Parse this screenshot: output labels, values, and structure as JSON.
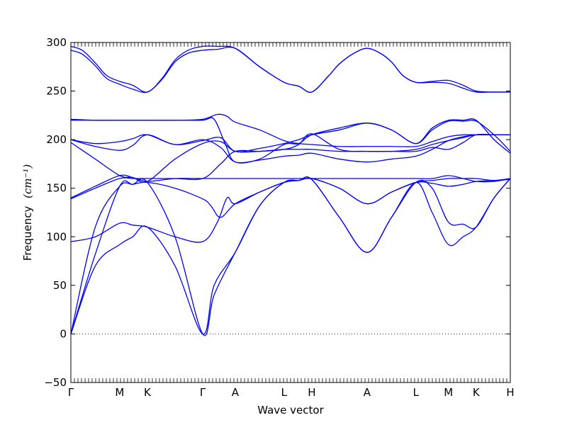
{
  "chart_data": {
    "type": "line",
    "xlabel": "Wave vector",
    "ylabel": "Frequency",
    "ylabel_unit": "(cm⁻¹)",
    "ylim": [
      -50,
      300
    ],
    "yticks": [
      -50,
      0,
      50,
      100,
      150,
      200,
      250,
      300
    ],
    "grid": false,
    "zero_line": "dotted",
    "line_color": "#0000ff",
    "xlim": [
      0,
      13.5
    ],
    "high_symmetry_points": [
      {
        "label": "Γ",
        "x": 0
      },
      {
        "label": "M",
        "x": 1.5
      },
      {
        "label": "K",
        "x": 2.35
      },
      {
        "label": "Γ",
        "x": 4.05
      },
      {
        "label": "A",
        "x": 5.05
      },
      {
        "label": "L",
        "x": 6.55
      },
      {
        "label": "H",
        "x": 7.4
      },
      {
        "label": "A",
        "x": 9.1
      },
      {
        "label": "L",
        "x": 10.6
      },
      {
        "label": "M",
        "x": 11.6
      },
      {
        "label": "K",
        "x": 12.45
      },
      {
        "label": "H",
        "x": 13.5
      }
    ],
    "series": [
      {
        "x": [
          0,
          0.75,
          1.5,
          1.9,
          2.35,
          3.2,
          4.05,
          4.4,
          5.05,
          5.8,
          6.55,
          7.0,
          7.4,
          8.25,
          9.1,
          9.85,
          10.6,
          11.1,
          11.6,
          12.05,
          12.45,
          13.0,
          13.5
        ],
        "y": [
          0,
          82,
          152,
          154,
          156,
          100,
          0,
          40,
          84,
          132,
          156,
          158,
          159,
          120,
          84,
          120,
          156,
          125,
          92,
          100,
          110,
          140,
          160
        ]
      },
      {
        "x": [
          0,
          0.75,
          1.5,
          1.9,
          2.35,
          3.2,
          4.05,
          4.4,
          5.05,
          5.8,
          6.55,
          7.0,
          7.4,
          8.25,
          9.1,
          9.85,
          10.6,
          11.1,
          11.6,
          12.05,
          12.45,
          13.0,
          13.5
        ],
        "y": [
          0,
          70,
          92,
          100,
          110,
          70,
          0,
          50,
          84,
          132,
          156,
          158,
          159,
          120,
          84,
          120,
          156,
          150,
          115,
          113,
          110,
          140,
          160
        ]
      },
      {
        "x": [
          0,
          0.75,
          1.5,
          1.9,
          2.35,
          3.2,
          4.05,
          4.3,
          4.6,
          5.05,
          5.8,
          6.55,
          7.0,
          7.4,
          8.25,
          9.1,
          9.85,
          10.6,
          11.1,
          11.6,
          12.05,
          12.45,
          13.0,
          13.5
        ],
        "y": [
          0,
          110,
          152,
          154,
          156,
          150,
          139,
          132,
          120,
          134,
          146,
          156,
          158,
          160,
          150,
          134,
          146,
          156,
          158,
          160,
          160,
          160,
          158,
          160
        ]
      },
      {
        "x": [
          0,
          0.75,
          1.5,
          1.9,
          2.35,
          3.2,
          4.05,
          4.5,
          4.8,
          5.05,
          5.8,
          6.55,
          7.0,
          7.4,
          8.25,
          9.1,
          9.85,
          10.6,
          11.1,
          11.6,
          12.05,
          12.45,
          13.0,
          13.5
        ],
        "y": [
          95,
          100,
          114,
          112,
          110,
          100,
          95,
          115,
          140,
          134,
          146,
          156,
          158,
          160,
          150,
          134,
          146,
          156,
          155,
          152,
          154,
          157,
          158,
          159
        ]
      },
      {
        "x": [
          0,
          0.75,
          1.5,
          1.9,
          2.35,
          3.2,
          4.05,
          4.6,
          5.05,
          5.8,
          6.55,
          7.0,
          7.4,
          8.25,
          9.1,
          9.85,
          10.6,
          11.1,
          11.6,
          12.05,
          12.45,
          13.0,
          13.5
        ],
        "y": [
          139,
          150,
          160,
          160,
          160,
          160,
          160,
          175,
          188,
          188,
          190,
          190,
          190,
          188,
          188,
          188,
          190,
          195,
          199,
          202,
          205,
          205,
          205
        ]
      },
      {
        "x": [
          0,
          0.75,
          1.5,
          1.9,
          2.35,
          3.2,
          4.05,
          4.6,
          5.05,
          5.8,
          6.55,
          7.0,
          7.4,
          8.25,
          9.1,
          9.85,
          10.6,
          11.1,
          11.6,
          12.05,
          12.45,
          13.0,
          13.5
        ],
        "y": [
          140,
          152,
          163,
          161,
          157,
          180,
          196,
          198,
          188,
          188,
          190,
          195,
          206,
          190,
          188,
          188,
          188,
          192,
          190,
          197,
          205,
          205,
          205
        ]
      },
      {
        "x": [
          0,
          0.75,
          1.5,
          1.9,
          2.35,
          3.2,
          4.05,
          4.5,
          5.05,
          5.8,
          6.55,
          7.0,
          7.4,
          8.25,
          9.1,
          9.85,
          10.6,
          11.1,
          11.6,
          12.05,
          12.45,
          13.0,
          13.5
        ],
        "y": [
          197,
          180,
          163,
          161,
          157,
          160,
          160,
          160,
          160,
          160,
          160,
          160,
          160,
          160,
          160,
          160,
          160,
          160,
          163,
          160,
          157,
          157,
          160
        ]
      },
      {
        "x": [
          0,
          0.75,
          1.5,
          1.9,
          2.35,
          3.2,
          4.05,
          4.6,
          5.05,
          5.8,
          6.55,
          7.0,
          7.4,
          8.25,
          9.1,
          9.85,
          10.6,
          11.1,
          11.6,
          12.05,
          12.45,
          13.0,
          13.5
        ],
        "y": [
          200,
          193,
          189,
          194,
          205,
          195,
          200,
          192,
          177,
          179,
          183,
          184,
          186,
          180,
          177,
          180,
          183,
          190,
          199,
          203,
          205,
          205,
          205
        ]
      },
      {
        "x": [
          0,
          0.75,
          1.5,
          1.9,
          2.35,
          3.2,
          4.05,
          4.6,
          5.05,
          5.8,
          6.55,
          7.0,
          7.4,
          8.25,
          9.1,
          9.85,
          10.6,
          11.1,
          11.6,
          12.05,
          12.45,
          13.0,
          13.5
        ],
        "y": [
          200,
          196,
          198,
          201,
          205,
          195,
          199,
          202,
          188,
          191,
          196,
          200,
          205,
          210,
          217,
          210,
          196,
          210,
          219,
          219,
          219,
          205,
          188
        ]
      },
      {
        "x": [
          0,
          0.75,
          1.5,
          1.9,
          2.35,
          3.2,
          4.05,
          4.4,
          4.75,
          5.05,
          5.8,
          6.55,
          7.0,
          7.4,
          8.25,
          9.1,
          9.85,
          10.6,
          11.1,
          11.6,
          12.05,
          12.45,
          13.0,
          13.5
        ],
        "y": [
          220,
          220,
          220,
          220,
          220,
          220,
          220,
          221,
          195,
          177,
          180,
          195,
          196,
          205,
          212,
          217,
          210,
          196,
          212,
          220,
          220,
          220,
          200,
          186
        ]
      },
      {
        "x": [
          0,
          0.75,
          1.5,
          1.9,
          2.35,
          3.2,
          4.05,
          4.5,
          4.8,
          5.05,
          5.8,
          6.55,
          7.0,
          7.4,
          8.25,
          9.1,
          9.85,
          10.6,
          11.1,
          11.6,
          12.05,
          12.45,
          13.0,
          13.5
        ],
        "y": [
          221,
          220,
          220,
          220,
          220,
          220,
          221,
          226,
          224,
          218,
          210,
          199,
          196,
          195,
          193,
          193,
          193,
          193,
          198,
          203,
          205,
          205,
          205,
          205
        ]
      },
      {
        "x": [
          0,
          0.35,
          0.75,
          1.1,
          1.5,
          1.9,
          2.35,
          2.8,
          3.2,
          3.6,
          4.05,
          4.5,
          5.05,
          5.8,
          6.55,
          7.0,
          7.4,
          7.9,
          8.25,
          8.7,
          9.1,
          9.5,
          9.85,
          10.2,
          10.6,
          11.1,
          11.6,
          12.05,
          12.45,
          13.0,
          13.5
        ],
        "y": [
          292,
          288,
          276,
          263,
          257,
          252,
          249,
          262,
          280,
          289,
          292,
          293,
          294,
          275,
          259,
          255,
          249,
          265,
          278,
          289,
          294,
          289,
          280,
          266,
          259,
          259,
          258,
          253,
          249,
          249,
          249
        ]
      },
      {
        "x": [
          0,
          0.35,
          0.75,
          1.1,
          1.5,
          1.9,
          2.35,
          2.8,
          3.2,
          3.6,
          4.05,
          4.5,
          5.05,
          5.8,
          6.55,
          7.0,
          7.4,
          7.9,
          8.25,
          8.7,
          9.1,
          9.5,
          9.85,
          10.2,
          10.6,
          11.1,
          11.6,
          12.05,
          12.45,
          13.0,
          13.5
        ],
        "y": [
          296,
          292,
          279,
          266,
          260,
          256,
          249,
          263,
          282,
          292,
          296,
          296,
          294,
          275,
          259,
          255,
          249,
          265,
          278,
          289,
          294,
          289,
          280,
          266,
          259,
          260,
          261,
          256,
          250,
          249,
          249
        ]
      }
    ]
  }
}
